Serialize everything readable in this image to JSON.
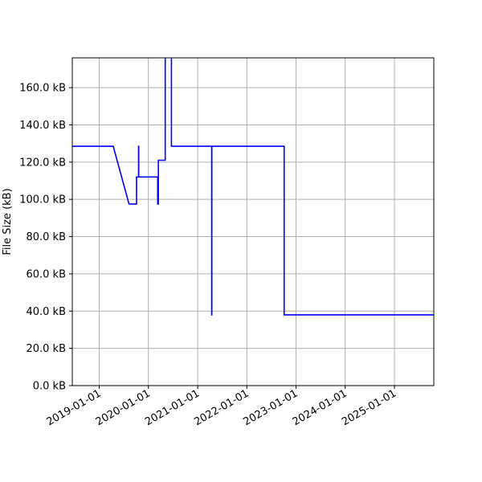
{
  "chart_data": {
    "type": "line",
    "ylabel": "File Size (kB)",
    "xlabel": "",
    "title": "",
    "x_range": [
      "2018-06-15",
      "2025-10-20"
    ],
    "ylim": [
      0,
      176
    ],
    "grid": true,
    "line_color": "#0000ff",
    "x_ticks": [
      "2019-01-01",
      "2020-01-01",
      "2021-01-01",
      "2022-01-01",
      "2023-01-01",
      "2024-01-01",
      "2025-01-01"
    ],
    "y_ticks": [
      {
        "value": 0,
        "label": "0.0 kB"
      },
      {
        "value": 20,
        "label": "20.0 kB"
      },
      {
        "value": 40,
        "label": "40.0 kB"
      },
      {
        "value": 60,
        "label": "60.0 kB"
      },
      {
        "value": 80,
        "label": "80.0 kB"
      },
      {
        "value": 100,
        "label": "100.0 kB"
      },
      {
        "value": 120,
        "label": "120.0 kB"
      },
      {
        "value": 140,
        "label": "140.0 kB"
      },
      {
        "value": 160,
        "label": "160.0 kB"
      }
    ],
    "series": [
      {
        "points": [
          {
            "x": "2018-06-15",
            "y": 128.5
          },
          {
            "x": "2019-04-15",
            "y": 128.5
          },
          {
            "x": "2019-08-10",
            "y": 97.5
          },
          {
            "x": "2019-10-05",
            "y": 97.5
          },
          {
            "x": "2019-10-05",
            "y": 112.0
          },
          {
            "x": "2019-10-20",
            "y": 112.0
          },
          {
            "x": "2019-10-20",
            "y": 128.5
          },
          {
            "x": "2019-10-21",
            "y": 128.5
          },
          {
            "x": "2019-10-21",
            "y": 112.0
          },
          {
            "x": "2020-03-10",
            "y": 112.0
          },
          {
            "x": "2020-03-10",
            "y": 97.5
          },
          {
            "x": "2020-03-15",
            "y": 97.5
          },
          {
            "x": "2020-03-15",
            "y": 121.0
          },
          {
            "x": "2020-05-05",
            "y": 121.0
          },
          {
            "x": "2020-05-05",
            "y": 200.0
          },
          {
            "x": "2020-06-20",
            "y": 200.0
          },
          {
            "x": "2020-06-20",
            "y": 128.5
          },
          {
            "x": "2021-04-15",
            "y": 128.5
          },
          {
            "x": "2021-04-15",
            "y": 38.0
          },
          {
            "x": "2021-04-16",
            "y": 38.0
          },
          {
            "x": "2021-04-16",
            "y": 128.5
          },
          {
            "x": "2022-10-05",
            "y": 128.5
          },
          {
            "x": "2022-10-05",
            "y": 38.0
          },
          {
            "x": "2025-10-20",
            "y": 38.0
          }
        ]
      }
    ]
  }
}
